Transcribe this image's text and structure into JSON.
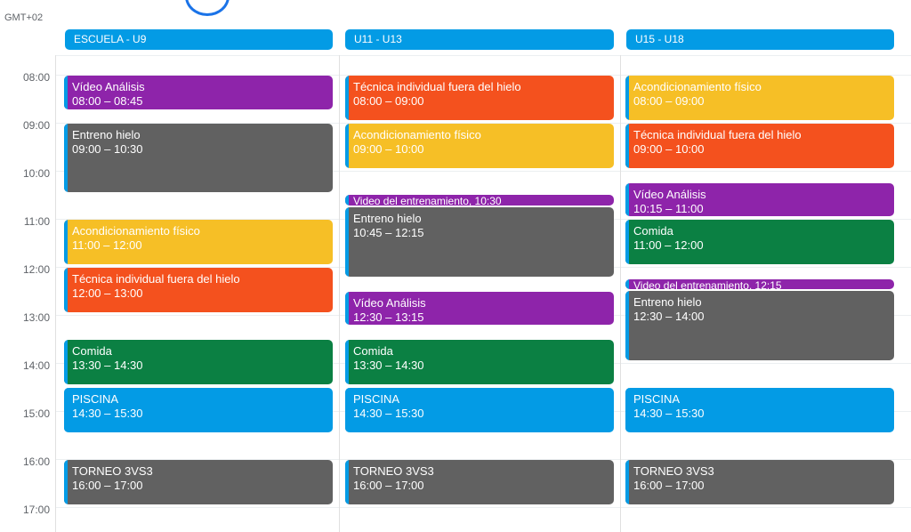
{
  "timezone": "GMT+02",
  "hours": [
    "08:00",
    "09:00",
    "10:00",
    "11:00",
    "12:00",
    "13:00",
    "14:00",
    "15:00",
    "16:00",
    "17:00"
  ],
  "columns": [
    {
      "name": "ESCUELA - U9",
      "events": [
        {
          "title": "Vídeo Análisis",
          "time": "08:00 – 08:45",
          "color": "#8e24aa"
        },
        {
          "title": "Entreno hielo",
          "time": "09:00 – 10:30",
          "color": "#616161"
        },
        {
          "title": "Acondicionamiento físico",
          "time": "11:00 – 12:00",
          "color": "#f6bf26"
        },
        {
          "title": "Técnica individual fuera del hielo",
          "time": "12:00 – 13:00",
          "color": "#f4511e"
        },
        {
          "title": "Comida",
          "time": "13:30 – 14:30",
          "color": "#0b8043"
        },
        {
          "title": "PISCINA",
          "time": "14:30 – 15:30",
          "color": "#039be5"
        },
        {
          "title": "TORNEO 3VS3",
          "time": "16:00 – 17:00",
          "color": "#616161"
        }
      ]
    },
    {
      "name": "U11 - U13",
      "events": [
        {
          "title": "Técnica individual fuera del hielo",
          "time": "08:00 – 09:00",
          "color": "#f4511e"
        },
        {
          "title": "Acondicionamiento físico",
          "time": "09:00 – 10:00",
          "color": "#f6bf26"
        },
        {
          "title": "Video del entrenamiento, 10:30",
          "color": "#8e24aa"
        },
        {
          "title": "Entreno hielo",
          "time": "10:45 – 12:15",
          "color": "#616161"
        },
        {
          "title": "Vídeo Análisis",
          "time": "12:30 – 13:15",
          "color": "#8e24aa"
        },
        {
          "title": "Comida",
          "time": "13:30 – 14:30",
          "color": "#0b8043"
        },
        {
          "title": "PISCINA",
          "time": "14:30 – 15:30",
          "color": "#039be5"
        },
        {
          "title": "TORNEO 3VS3",
          "time": "16:00 – 17:00",
          "color": "#616161"
        }
      ]
    },
    {
      "name": "U15 - U18",
      "events": [
        {
          "title": "Acondicionamiento físico",
          "time": "08:00 – 09:00",
          "color": "#f6bf26"
        },
        {
          "title": "Técnica individual fuera del hielo",
          "time": "09:00 – 10:00",
          "color": "#f4511e"
        },
        {
          "title": "Vídeo Análisis",
          "time": "10:15 – 11:00",
          "color": "#8e24aa"
        },
        {
          "title": "Comida",
          "time": "11:00 – 12:00",
          "color": "#0b8043"
        },
        {
          "title": "Video del entrenamiento, 12:15",
          "color": "#8e24aa"
        },
        {
          "title": "Entreno hielo",
          "time": "12:30 – 14:00",
          "color": "#616161"
        },
        {
          "title": "PISCINA",
          "time": "14:30 – 15:30",
          "color": "#039be5"
        },
        {
          "title": "TORNEO 3VS3",
          "time": "16:00 – 17:00",
          "color": "#616161"
        }
      ]
    }
  ]
}
